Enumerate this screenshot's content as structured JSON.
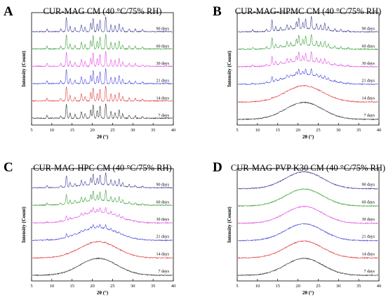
{
  "chart_data": [
    {
      "type": "line",
      "panel": "A",
      "title": "CUR-MAG CM (40 °C/75% RH)",
      "xlabel": "2θ (°)",
      "ylabel": "Intensity (Count)",
      "xlim": [
        5,
        40
      ],
      "xticks": [
        5,
        10,
        15,
        20,
        25,
        30,
        35,
        40
      ],
      "profile": "crystalline",
      "series": [
        {
          "name": "7 days",
          "color": "#222222",
          "amorphous": 0.0
        },
        {
          "name": "14 days",
          "color": "#e03030",
          "amorphous": 0.0
        },
        {
          "name": "21 days",
          "color": "#3a3ae0",
          "amorphous": 0.0
        },
        {
          "name": "30 days",
          "color": "#e040e0",
          "amorphous": 0.0
        },
        {
          "name": "60 days",
          "color": "#2a9a2a",
          "amorphous": 0.0
        },
        {
          "name": "90 days",
          "color": "#303090",
          "amorphous": 0.0
        }
      ]
    },
    {
      "type": "line",
      "panel": "B",
      "title": "CUR-MAG-HPMC CM (40 °C/75% RH)",
      "xlabel": "2θ (°)",
      "ylabel": "Intensity (Count)",
      "xlim": [
        5,
        40
      ],
      "xticks": [
        5,
        10,
        15,
        20,
        25,
        30,
        35,
        40
      ],
      "profile": "amorphous-to-crystalline",
      "series": [
        {
          "name": "7 days",
          "color": "#222222",
          "amorphous": 1.0
        },
        {
          "name": "14 days",
          "color": "#e03030",
          "amorphous": 0.95
        },
        {
          "name": "21 days",
          "color": "#3a3ae0",
          "amorphous": 0.6
        },
        {
          "name": "30 days",
          "color": "#e040e0",
          "amorphous": 0.35
        },
        {
          "name": "60 days",
          "color": "#2a9a2a",
          "amorphous": 0.25
        },
        {
          "name": "90 days",
          "color": "#303090",
          "amorphous": 0.2
        }
      ]
    },
    {
      "type": "line",
      "panel": "C",
      "title": "CUR-MAG-HPC CM (40 °C/75% RH)",
      "xlabel": "2θ (°)",
      "ylabel": "Intensity (Count)",
      "xlim": [
        5,
        40
      ],
      "xticks": [
        5,
        10,
        15,
        20,
        25,
        30,
        35,
        40
      ],
      "profile": "amorphous-to-crystalline",
      "series": [
        {
          "name": "7 days",
          "color": "#222222",
          "amorphous": 1.0
        },
        {
          "name": "14 days",
          "color": "#e03030",
          "amorphous": 0.95
        },
        {
          "name": "21 days",
          "color": "#3a3ae0",
          "amorphous": 0.75
        },
        {
          "name": "30 days",
          "color": "#e040e0",
          "amorphous": 0.65
        },
        {
          "name": "60 days",
          "color": "#2a9a2a",
          "amorphous": 0.3
        },
        {
          "name": "90 days",
          "color": "#303090",
          "amorphous": 0.2
        }
      ]
    },
    {
      "type": "line",
      "panel": "D",
      "title": "CUR-MAG-PVP K30 CM (40 °C/75% RH)",
      "xlabel": "2θ (°)",
      "ylabel": "Intensity (Count)",
      "xlim": [
        5,
        40
      ],
      "xticks": [
        5,
        10,
        15,
        20,
        25,
        30,
        35,
        40
      ],
      "profile": "amorphous",
      "series": [
        {
          "name": "7 days",
          "color": "#222222",
          "amorphous": 1.0
        },
        {
          "name": "14 days",
          "color": "#e03030",
          "amorphous": 1.0
        },
        {
          "name": "21 days",
          "color": "#3a3ae0",
          "amorphous": 1.0
        },
        {
          "name": "30 days",
          "color": "#e040e0",
          "amorphous": 1.0
        },
        {
          "name": "60 days",
          "color": "#2a9a2a",
          "amorphous": 1.0
        },
        {
          "name": "90 days",
          "color": "#303090",
          "amorphous": 1.0
        }
      ]
    }
  ]
}
